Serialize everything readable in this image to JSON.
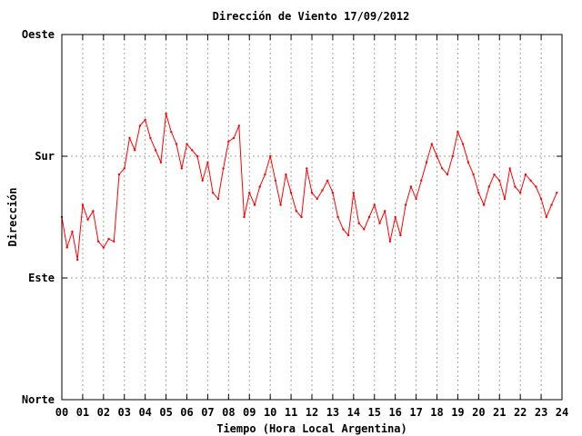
{
  "chart_data": {
    "type": "line",
    "title": "Dirección de Viento 17/09/2012",
    "xlabel": "Tiempo (Hora Local Argentina)",
    "ylabel": "Dirección",
    "xlim": [
      0,
      24
    ],
    "ylim": [
      0,
      300
    ],
    "x_ticks": [
      0,
      1,
      2,
      3,
      4,
      5,
      6,
      7,
      8,
      9,
      10,
      11,
      12,
      13,
      14,
      15,
      16,
      17,
      18,
      19,
      20,
      21,
      22,
      23,
      24
    ],
    "x_tick_labels": [
      "00",
      "01",
      "02",
      "03",
      "04",
      "05",
      "06",
      "07",
      "08",
      "09",
      "10",
      "11",
      "12",
      "13",
      "14",
      "15",
      "16",
      "17",
      "18",
      "19",
      "20",
      "21",
      "22",
      "23",
      "24"
    ],
    "y_ticks": [
      0,
      100,
      200,
      300
    ],
    "y_tick_labels": [
      "Norte",
      "Este",
      "Sur",
      "Oeste"
    ],
    "grid": true,
    "series_color": "#ff0000",
    "series": [
      {
        "x": [
          0.0,
          0.25,
          0.5,
          0.75,
          1.0,
          1.25,
          1.5,
          1.75,
          2.0,
          2.25,
          2.5,
          2.75,
          3.0,
          3.25,
          3.5,
          3.75,
          4.0,
          4.25,
          4.5,
          4.75,
          5.0,
          5.25,
          5.5,
          5.75,
          6.0,
          6.25,
          6.5,
          6.75,
          7.0,
          7.25,
          7.5,
          7.75,
          8.0,
          8.25,
          8.5,
          8.75,
          9.0,
          9.25,
          9.5,
          9.75,
          10.0,
          10.25,
          10.5,
          10.75,
          11.0,
          11.25,
          11.5,
          11.75,
          12.0,
          12.25,
          12.5,
          12.75,
          13.0,
          13.25,
          13.5,
          13.75,
          14.0,
          14.25,
          14.5,
          14.75,
          15.0,
          15.25,
          15.5,
          15.75,
          16.0,
          16.25,
          16.5,
          16.75,
          17.0,
          17.25,
          17.5,
          17.75,
          18.0,
          18.25,
          18.5,
          18.75,
          19.0,
          19.25,
          19.5,
          19.75,
          20.0,
          20.25,
          20.5,
          20.75,
          21.0,
          21.25,
          21.5,
          21.75,
          22.0,
          22.25,
          22.5,
          22.75,
          23.0,
          23.25,
          23.5,
          23.75
        ],
        "y": [
          150,
          125,
          138,
          115,
          160,
          148,
          155,
          130,
          125,
          132,
          130,
          185,
          190,
          215,
          205,
          225,
          230,
          215,
          205,
          195,
          235,
          220,
          210,
          190,
          210,
          205,
          200,
          180,
          195,
          170,
          165,
          190,
          212,
          215,
          225,
          150,
          170,
          160,
          175,
          185,
          200,
          180,
          160,
          185,
          170,
          155,
          150,
          190,
          170,
          165,
          172,
          180,
          170,
          150,
          140,
          135,
          170,
          145,
          140,
          150,
          160,
          145,
          155,
          130,
          150,
          135,
          160,
          175,
          165,
          180,
          195,
          210,
          200,
          190,
          185,
          200,
          220,
          210,
          195,
          185,
          170,
          160,
          175,
          185,
          180,
          165,
          190,
          175,
          170,
          185,
          180,
          175,
          165,
          150,
          160,
          170
        ]
      }
    ]
  }
}
